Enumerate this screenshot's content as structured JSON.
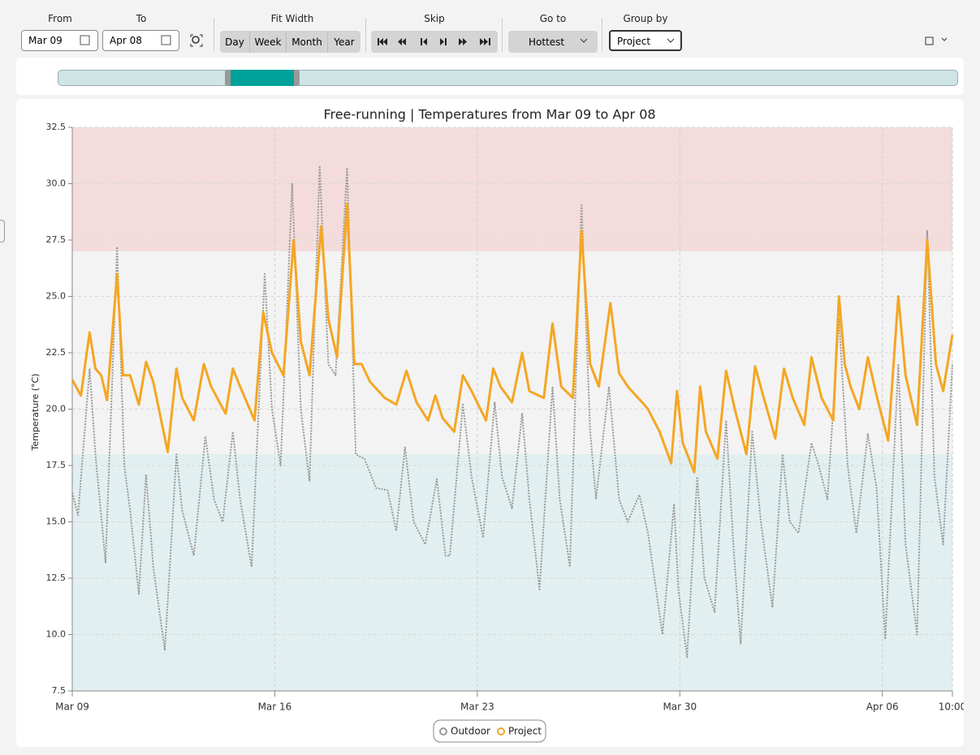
{
  "toolbar": {
    "from_label": "From",
    "from_value": "Mar 09",
    "to_label": "To",
    "to_value": "Apr 08",
    "fit_width": "Fit Width",
    "periods": [
      "Day",
      "Week",
      "Month",
      "Year"
    ],
    "skip_label": "Skip",
    "goto_label": "Go to",
    "goto_value": "Hottest",
    "group_label": "Group by",
    "group_value": "Project"
  },
  "chart_data": {
    "type": "line",
    "title": "Free-running | Temperatures from Mar 09 to Apr 08",
    "ylabel": "Temperature (°C)",
    "xlim": [
      0,
      30.42
    ],
    "ylim": [
      7.5,
      32.5
    ],
    "xticks": [
      {
        "value": 0,
        "label": "Mar 09"
      },
      {
        "value": 7,
        "label": "Mar 16"
      },
      {
        "value": 14,
        "label": "Mar 23"
      },
      {
        "value": 21,
        "label": "Mar 30"
      },
      {
        "value": 28,
        "label": "Apr 06"
      },
      {
        "value": 30.42,
        "label": "10:00"
      }
    ],
    "yticks": [
      7.5,
      {
        "value": 10,
        "label": "10.0"
      },
      12.5,
      {
        "value": 15,
        "label": "15.0"
      },
      17.5,
      {
        "value": 20,
        "label": "20.0"
      },
      22.5,
      {
        "value": 25,
        "label": "25.0"
      },
      27.5,
      {
        "value": 30,
        "label": "30.0"
      },
      32.5
    ],
    "grid": true,
    "bands": [
      {
        "from": 27,
        "to": 32.5,
        "color": "#f3dcdb"
      },
      {
        "from": 18,
        "to": 27,
        "color": "#f3f3f3"
      },
      {
        "from": 7.5,
        "to": 18,
        "color": "#e2eff0"
      }
    ],
    "series": [
      {
        "name": "Outdoor",
        "color": "#9a9a9a",
        "dashed": true,
        "x": [
          0,
          0.2,
          0.6,
          0.8,
          1.15,
          1.55,
          1.8,
          2.0,
          2.3,
          2.55,
          2.8,
          3.2,
          3.6,
          3.8,
          4.2,
          4.6,
          4.9,
          5.2,
          5.55,
          5.8,
          6.2,
          6.65,
          6.9,
          7.2,
          7.6,
          7.9,
          8.2,
          8.55,
          8.85,
          9.1,
          9.5,
          9.8,
          10.1,
          10.5,
          10.9,
          11.2,
          11.5,
          11.8,
          12.2,
          12.6,
          12.9,
          13.05,
          13.5,
          13.8,
          14.2,
          14.6,
          14.85,
          15.2,
          15.55,
          15.8,
          16.15,
          16.6,
          16.85,
          17.2,
          17.6,
          17.9,
          18.1,
          18.55,
          18.9,
          19.2,
          19.6,
          19.9,
          20.4,
          20.8,
          20.95,
          21.25,
          21.6,
          21.85,
          22.2,
          22.6,
          22.85,
          23.1,
          23.5,
          23.8,
          24.2,
          24.55,
          24.8,
          25.1,
          25.55,
          25.8,
          26.1,
          26.5,
          26.8,
          27.1,
          27.5,
          27.8,
          28.1,
          28.55,
          28.8,
          29.2,
          29.55,
          29.8,
          30.1,
          30.42
        ],
        "values": [
          16.3,
          15.3,
          21.8,
          18,
          13.2,
          27.2,
          17.5,
          15.5,
          11.8,
          17.1,
          13,
          9.3,
          18,
          15.5,
          13.5,
          18.8,
          16,
          15,
          19,
          16,
          13,
          26,
          20,
          17.5,
          30,
          20,
          16.8,
          30.8,
          22,
          21.5,
          30.7,
          18,
          17.8,
          16.5,
          16.4,
          14.6,
          18.3,
          15,
          14,
          16.9,
          13.5,
          13.5,
          20.2,
          17,
          14.3,
          20.3,
          17,
          15.6,
          19.8,
          16,
          12,
          21,
          16,
          13,
          29.1,
          19,
          16,
          21,
          16,
          15,
          16.2,
          14.5,
          10,
          15.8,
          12,
          9,
          17,
          12.5,
          11,
          19.5,
          14,
          9.6,
          19,
          15,
          11.2,
          18,
          15,
          14.5,
          18.5,
          17.5,
          16,
          24,
          17.5,
          14.5,
          18.9,
          16.5,
          9.8,
          22,
          14,
          10,
          27.9,
          17,
          14,
          22
        ]
      },
      {
        "name": "Project",
        "color": "#f5a623",
        "dashed": false,
        "x": [
          0,
          0.3,
          0.5,
          0.6,
          0.8,
          1.0,
          1.2,
          1.55,
          1.75,
          2.0,
          2.3,
          2.55,
          2.8,
          3.3,
          3.6,
          3.8,
          4.2,
          4.55,
          4.8,
          5.3,
          5.55,
          5.8,
          6.3,
          6.6,
          6.9,
          7.3,
          7.65,
          7.9,
          8.2,
          8.6,
          8.85,
          9.15,
          9.5,
          9.75,
          10.0,
          10.3,
          10.8,
          11.2,
          11.55,
          11.9,
          12.3,
          12.55,
          12.8,
          13.2,
          13.5,
          13.8,
          14.3,
          14.55,
          14.8,
          15.2,
          15.55,
          15.8,
          16.3,
          16.6,
          16.9,
          17.3,
          17.6,
          17.9,
          18.2,
          18.6,
          18.9,
          19.2,
          19.7,
          19.9,
          20.3,
          20.7,
          20.9,
          21.1,
          21.5,
          21.7,
          21.9,
          22.3,
          22.6,
          22.9,
          23.3,
          23.6,
          23.9,
          24.3,
          24.6,
          24.9,
          25.3,
          25.55,
          25.9,
          26.3,
          26.5,
          26.7,
          26.9,
          27.2,
          27.5,
          27.8,
          28.2,
          28.55,
          28.8,
          29.2,
          29.55,
          29.85,
          30.1,
          30.42
        ],
        "values": [
          21.3,
          20.6,
          22.5,
          23.4,
          21.8,
          21.5,
          20.4,
          26,
          21.5,
          21.5,
          20.2,
          22.1,
          21.2,
          18.1,
          21.8,
          20.5,
          19.5,
          22,
          21,
          19.8,
          21.8,
          21,
          19.5,
          24.3,
          22.5,
          21.5,
          27.5,
          23,
          21.5,
          28.1,
          24,
          22.3,
          29.1,
          22,
          22,
          21.2,
          20.5,
          20.2,
          21.7,
          20.3,
          19.5,
          20.6,
          19.6,
          19,
          21.5,
          20.8,
          19.5,
          21.8,
          21,
          20.3,
          22.5,
          20.8,
          20.5,
          23.8,
          21,
          20.5,
          27.9,
          22,
          21,
          24.7,
          21.6,
          21,
          20.3,
          20,
          19,
          17.6,
          20.8,
          18.5,
          17.2,
          21,
          19,
          17.8,
          21.7,
          20,
          18,
          21.9,
          20.5,
          18.7,
          21.8,
          20.5,
          19.3,
          22.3,
          20.5,
          19.5,
          25,
          22,
          21,
          20,
          22.3,
          20.6,
          18.6,
          25,
          21.5,
          19.3,
          27.5,
          22,
          20.8,
          23.3
        ]
      }
    ]
  }
}
